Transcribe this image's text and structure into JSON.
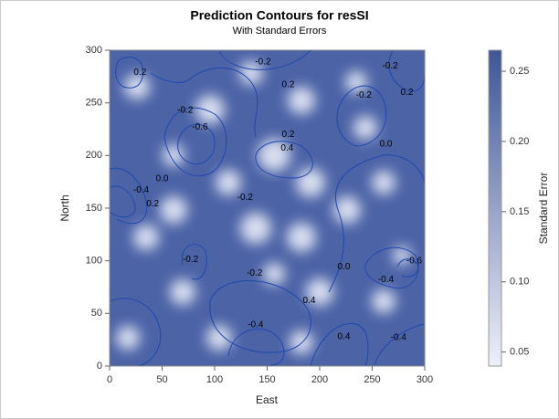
{
  "chart_data": {
    "type": "contour",
    "title": "Prediction Contours for resSI",
    "subtitle": "With Standard Errors",
    "x_label": "East",
    "y_label": "North",
    "xlim": [
      0,
      300
    ],
    "xticks": [
      0,
      50,
      100,
      150,
      200,
      250,
      300
    ],
    "ylim": [
      0,
      300
    ],
    "yticks": [
      0,
      50,
      100,
      150,
      200,
      250,
      300
    ],
    "contour_labels": [
      {
        "x": 29,
        "y": 279,
        "label": "0.2"
      },
      {
        "x": 146,
        "y": 289,
        "label": "-0.2"
      },
      {
        "x": 267,
        "y": 285,
        "label": "-0.2"
      },
      {
        "x": 170,
        "y": 267,
        "label": "0.2"
      },
      {
        "x": 242,
        "y": 257,
        "label": "-0.2"
      },
      {
        "x": 283,
        "y": 260,
        "label": "0.2"
      },
      {
        "x": 72,
        "y": 243,
        "label": "-0.2"
      },
      {
        "x": 86,
        "y": 227,
        "label": "-0.6"
      },
      {
        "x": 170,
        "y": 220,
        "label": "0.2"
      },
      {
        "x": 169,
        "y": 207,
        "label": "0.4"
      },
      {
        "x": 263,
        "y": 211,
        "label": "0.0"
      },
      {
        "x": 50,
        "y": 178,
        "label": "0.0"
      },
      {
        "x": 30,
        "y": 167,
        "label": "-0.4"
      },
      {
        "x": 41,
        "y": 154,
        "label": "0.2"
      },
      {
        "x": 129,
        "y": 160,
        "label": "-0.2"
      },
      {
        "x": 77,
        "y": 101,
        "label": "-0.2"
      },
      {
        "x": 223,
        "y": 94,
        "label": "0.0"
      },
      {
        "x": 290,
        "y": 100,
        "label": "-0.6"
      },
      {
        "x": 138,
        "y": 88,
        "label": "-0.2"
      },
      {
        "x": 263,
        "y": 82,
        "label": "-0.4"
      },
      {
        "x": 190,
        "y": 62,
        "label": "0.4"
      },
      {
        "x": 139,
        "y": 39,
        "label": "-0.4"
      },
      {
        "x": 223,
        "y": 28,
        "label": "0.4"
      },
      {
        "x": 275,
        "y": 27,
        "label": "-0.4"
      }
    ],
    "colorbar": {
      "label": "Standard Error",
      "lim": [
        0.04,
        0.265
      ],
      "ticks": [
        0.05,
        {
          "value": 0.1,
          "label": "0.10"
        },
        0.15,
        {
          "value": 0.2,
          "label": "0.20"
        },
        0.25
      ],
      "colors": [
        "#eef0f8",
        "#3f5597"
      ]
    }
  }
}
